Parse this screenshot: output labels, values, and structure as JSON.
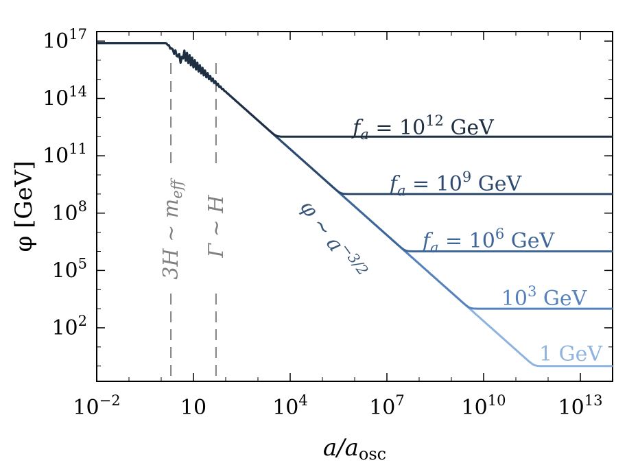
{
  "chart_data": {
    "type": "line",
    "xscale": "log10",
    "yscale": "log10",
    "xlim_log10": [
      -2,
      14
    ],
    "ylim_log10": [
      -0.8,
      17.5
    ],
    "xlabel": "a/a_osc",
    "xlabel_main": "a/a",
    "xlabel_sub": "osc",
    "ylabel": "φ [GeV]",
    "x_ticks": [
      {
        "base": "10",
        "exp": "−2",
        "log10": -2
      },
      {
        "base": "10",
        "exp": "",
        "log10": 1
      },
      {
        "base": "10",
        "exp": "4",
        "log10": 4
      },
      {
        "base": "10",
        "exp": "7",
        "log10": 7
      },
      {
        "base": "10",
        "exp": "10",
        "log10": 10
      },
      {
        "base": "10",
        "exp": "13",
        "log10": 13
      }
    ],
    "y_ticks": [
      {
        "base": "10",
        "exp": "2",
        "log10": 2
      },
      {
        "base": "10",
        "exp": "5",
        "log10": 5
      },
      {
        "base": "10",
        "exp": "8",
        "log10": 8
      },
      {
        "base": "10",
        "exp": "11",
        "log10": 11
      },
      {
        "base": "10",
        "exp": "14",
        "log10": 14
      },
      {
        "base": "10",
        "exp": "17",
        "log10": 17
      }
    ],
    "initial_log10_phi": 16.9,
    "osc_start_log10_a": 0.3,
    "scaling_slope": -1.5,
    "series": [
      {
        "name": "f_a = 10^12 GeV",
        "log10_fa": 12,
        "color": "#1f2f42",
        "label_parts": {
          "f": "f",
          "sub": "a",
          "eq": " = 10",
          "exp": "12",
          "unit": " GeV"
        }
      },
      {
        "name": "f_a = 10^9 GeV",
        "log10_fa": 9,
        "color": "#2d4a6e",
        "label_parts": {
          "f": "f",
          "sub": "a",
          "eq": " = 10",
          "exp": "9",
          "unit": " GeV"
        }
      },
      {
        "name": "f_a = 10^6 GeV",
        "log10_fa": 6,
        "color": "#3f6699",
        "label_parts": {
          "f": "f",
          "sub": "a",
          "eq": " = 10",
          "exp": "6",
          "unit": " GeV"
        }
      },
      {
        "name": "10^3 GeV",
        "log10_fa": 3,
        "color": "#5582bd",
        "label_parts": {
          "f": "",
          "sub": "",
          "eq": "10",
          "exp": "3",
          "unit": " GeV"
        }
      },
      {
        "name": "1 GeV",
        "log10_fa": 0,
        "color": "#8eb3df",
        "label_parts": {
          "f": "",
          "sub": "",
          "eq": "1 GeV",
          "exp": "",
          "unit": ""
        }
      }
    ],
    "vlines": [
      {
        "log10_x": 0.3,
        "label": "3H ∼ m_eff",
        "label_main": "3H ∼ m",
        "label_sub": "eff"
      },
      {
        "log10_x": 1.7,
        "label": "Γ ∼ H"
      }
    ],
    "annotations": [
      {
        "text": "φ ∼ a^−3/2",
        "main": "φ ∼ a",
        "exp": "−3/2"
      }
    ],
    "colors": {
      "dashed": "#808080",
      "annotation": "#3a5577"
    }
  }
}
